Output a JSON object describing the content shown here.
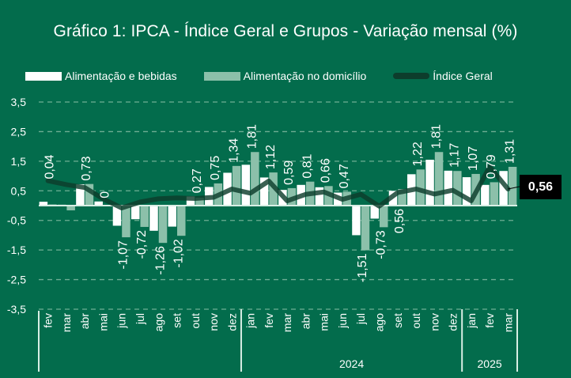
{
  "title": "Gráfico 1: IPCA - Índice Geral e Grupos - Variação mensal (%)",
  "legend": [
    {
      "label": "Alimentação e bebidas",
      "color": "#ffffff",
      "kind": "bar"
    },
    {
      "label": "Alimentação no domicílio",
      "color": "#8cc0aa",
      "kind": "bar"
    },
    {
      "label": "Índice Geral",
      "color": "#0d3d2c",
      "kind": "line"
    }
  ],
  "callout": {
    "label": "0,56"
  },
  "chart_data": {
    "type": "bar",
    "title": "Gráfico 1: IPCA - Índice Geral e Grupos - Variação mensal (%)",
    "xlabel": "",
    "ylabel": "",
    "ylim": [
      -3.5,
      3.5
    ],
    "yticks": [
      3.5,
      2.5,
      1.5,
      0.5,
      -0.5,
      -1.5,
      -2.5,
      -3.5
    ],
    "ytick_labels": [
      "3,5",
      "2,5",
      "1,5",
      "0,5",
      "-0,5",
      "-1,5",
      "-2,5",
      "-3,5"
    ],
    "grid": true,
    "legend_position": "top",
    "categories": [
      "fev",
      "mar",
      "abr",
      "mai",
      "jun",
      "jul",
      "ago",
      "set",
      "out",
      "nov",
      "dez",
      "jan",
      "fev",
      "mar",
      "abr",
      "mai",
      "jun",
      "jul",
      "ago",
      "set",
      "out",
      "nov",
      "dez",
      "jan",
      "fev",
      "mar"
    ],
    "year_groups": [
      {
        "label": "",
        "count": 11
      },
      {
        "label": "2024",
        "count": 12
      },
      {
        "label": "2025",
        "count": 3
      }
    ],
    "series": [
      {
        "name": "Alimentação e bebidas",
        "type": "bar",
        "color": "#ffffff",
        "values": [
          0.13,
          0.03,
          0.72,
          0.14,
          -0.68,
          -0.46,
          -0.85,
          -0.71,
          0.31,
          0.63,
          1.11,
          1.38,
          0.95,
          0.53,
          0.7,
          0.62,
          0.44,
          -1.0,
          -0.44,
          0.5,
          1.06,
          1.55,
          1.18,
          0.96,
          0.7,
          1.17
        ]
      },
      {
        "name": "Alimentação no domicílio",
        "type": "bar",
        "color": "#8cc0aa",
        "values": [
          0.04,
          -0.16,
          0.73,
          0.0,
          -1.07,
          -0.72,
          -1.26,
          -1.02,
          0.27,
          0.75,
          1.34,
          1.81,
          1.12,
          0.59,
          0.81,
          0.66,
          0.47,
          -1.51,
          -0.73,
          0.56,
          1.22,
          1.81,
          1.17,
          1.07,
          0.79,
          1.31
        ],
        "data_labels": [
          "0,04",
          "",
          "0,73",
          "0",
          "-1,07",
          "-0,72",
          "-1,26",
          "-1,02",
          "0,27",
          "0,75",
          "1,34",
          "1,81",
          "1,12",
          "0,59",
          "0,81",
          "0,66",
          "0,47",
          "-1,51",
          "-0,73",
          "0,56",
          "1,22",
          "1,81",
          "1,17",
          "1,07",
          "0,79",
          "1,31"
        ]
      },
      {
        "name": "Índice Geral",
        "type": "line",
        "color": "#0d3d2c",
        "values": [
          0.84,
          0.71,
          0.61,
          0.23,
          -0.08,
          0.12,
          0.23,
          0.26,
          0.24,
          0.28,
          0.56,
          0.42,
          0.83,
          0.16,
          0.38,
          0.46,
          0.21,
          0.38,
          -0.02,
          0.44,
          0.56,
          0.39,
          0.52,
          0.16,
          1.31,
          0.56
        ],
        "last_value_label": "0,56"
      }
    ]
  }
}
